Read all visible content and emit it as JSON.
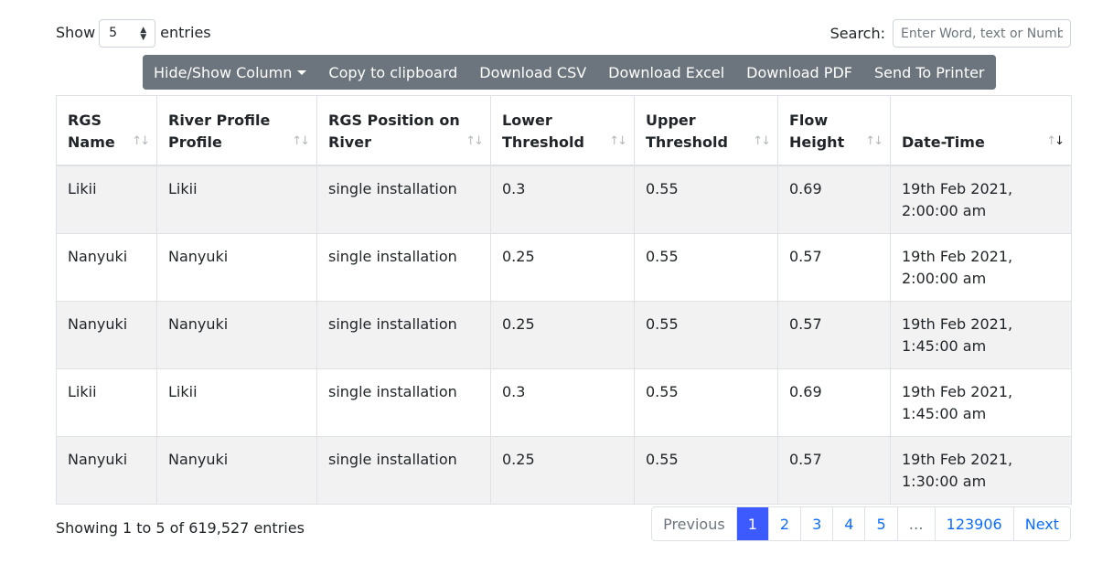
{
  "length": {
    "show_label": "Show",
    "value": "5",
    "entries_label": "entries"
  },
  "search": {
    "label": "Search:",
    "placeholder": "Enter Word, text or Numb"
  },
  "buttons": {
    "colvis": "Hide/Show Column",
    "copy": "Copy to clipboard",
    "csv": "Download CSV",
    "excel": "Download Excel",
    "pdf": "Download PDF",
    "print": "Send To Printer"
  },
  "table": {
    "headers": [
      "RGS Name",
      "River Profile Profile",
      "RGS Position on River",
      "Lower Threshold",
      "Upper Threshold",
      "Flow Height",
      "Date-Time"
    ],
    "sorted_column": "Date-Time",
    "sort_direction": "descending",
    "rows": [
      [
        "Likii",
        "Likii",
        "single installation",
        "0.3",
        "0.55",
        "0.69",
        "19th Feb 2021, 2:00:00 am"
      ],
      [
        "Nanyuki",
        "Nanyuki",
        "single installation",
        "0.25",
        "0.55",
        "0.57",
        "19th Feb 2021, 2:00:00 am"
      ],
      [
        "Nanyuki",
        "Nanyuki",
        "single installation",
        "0.25",
        "0.55",
        "0.57",
        "19th Feb 2021, 1:45:00 am"
      ],
      [
        "Likii",
        "Likii",
        "single installation",
        "0.3",
        "0.55",
        "0.69",
        "19th Feb 2021, 1:45:00 am"
      ],
      [
        "Nanyuki",
        "Nanyuki",
        "single installation",
        "0.25",
        "0.55",
        "0.57",
        "19th Feb 2021, 1:30:00 am"
      ]
    ]
  },
  "info": "Showing 1 to 5 of 619,527 entries",
  "pagination": {
    "previous": "Previous",
    "pages": [
      "1",
      "2",
      "3",
      "4",
      "5"
    ],
    "ellipsis": "…",
    "last": "123906",
    "next": "Next",
    "current": "1"
  },
  "colors": {
    "button_bg": "#6c757d",
    "active_page": "#3d5afe",
    "link": "#0d6efd",
    "stripe": "#f2f2f2"
  }
}
